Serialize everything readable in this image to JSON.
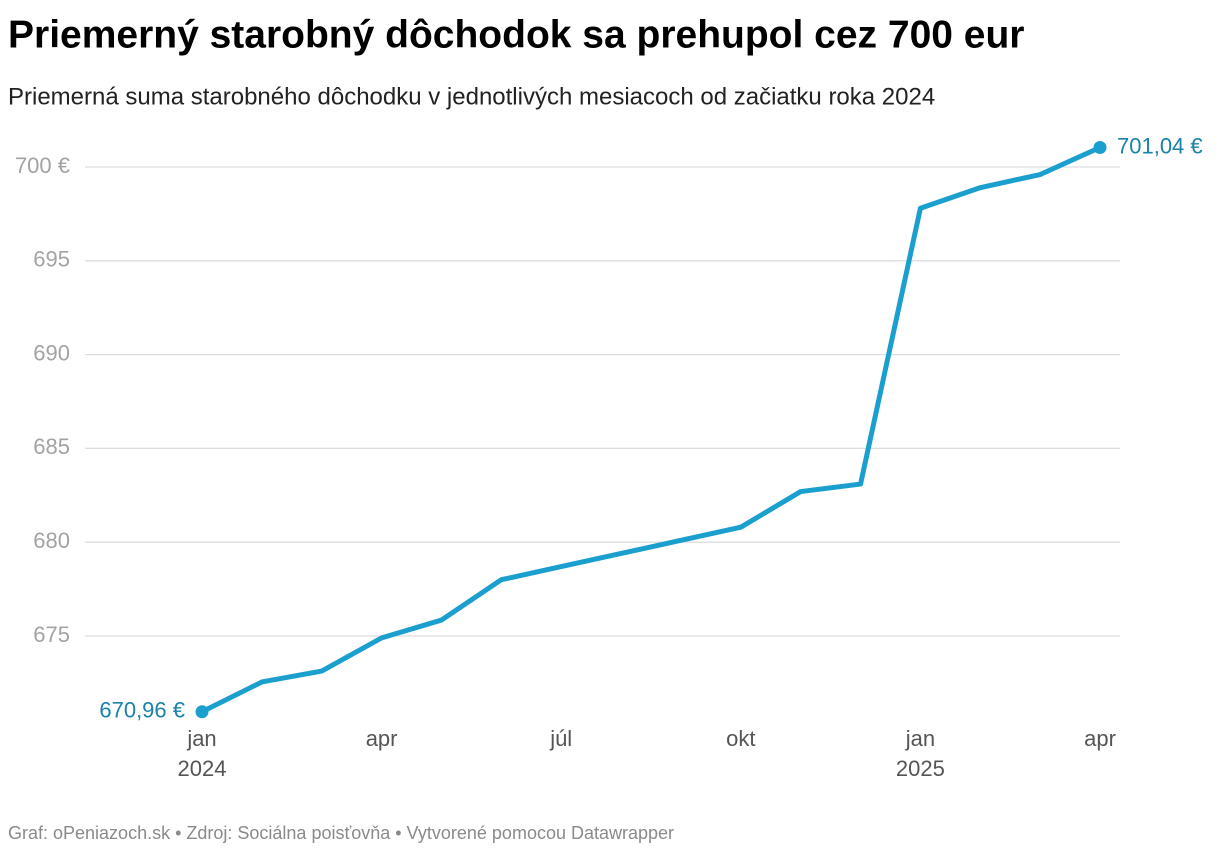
{
  "chart_data": {
    "type": "line",
    "title": "Priemerný starobný dôchodok sa prehupol cez 700 eur",
    "subtitle": "Priemerná suma starobného dôchodku v jednotlivých mesiacoch od začiatku roka 2024",
    "categories": [
      "jan 2024",
      null,
      null,
      "apr",
      null,
      null,
      "júl",
      null,
      null,
      "okt",
      null,
      null,
      "jan 2025",
      null,
      null,
      "apr"
    ],
    "series": [
      {
        "color": "#1b9fce",
        "values": [
          670.96,
          672.55,
          673.13,
          674.9,
          675.85,
          678.0,
          678.7,
          679.4,
          680.1,
          680.8,
          682.7,
          683.1,
          697.8,
          698.9,
          699.6,
          701.04
        ],
        "value_labels": [
          "670,96 €",
          null,
          null,
          null,
          null,
          null,
          null,
          null,
          null,
          null,
          null,
          null,
          null,
          null,
          null,
          "701,04 €"
        ]
      }
    ],
    "ylim": [
      670,
      702
    ],
    "yticks": [
      675,
      680,
      685,
      690,
      695,
      {
        "value": 700,
        "label": "700 €"
      }
    ],
    "grid": true,
    "source": "Graf: oPeniazoch.sk • Zdroj: Sociálna poisťovňa • Vytvorené pomocou Datawrapper"
  }
}
